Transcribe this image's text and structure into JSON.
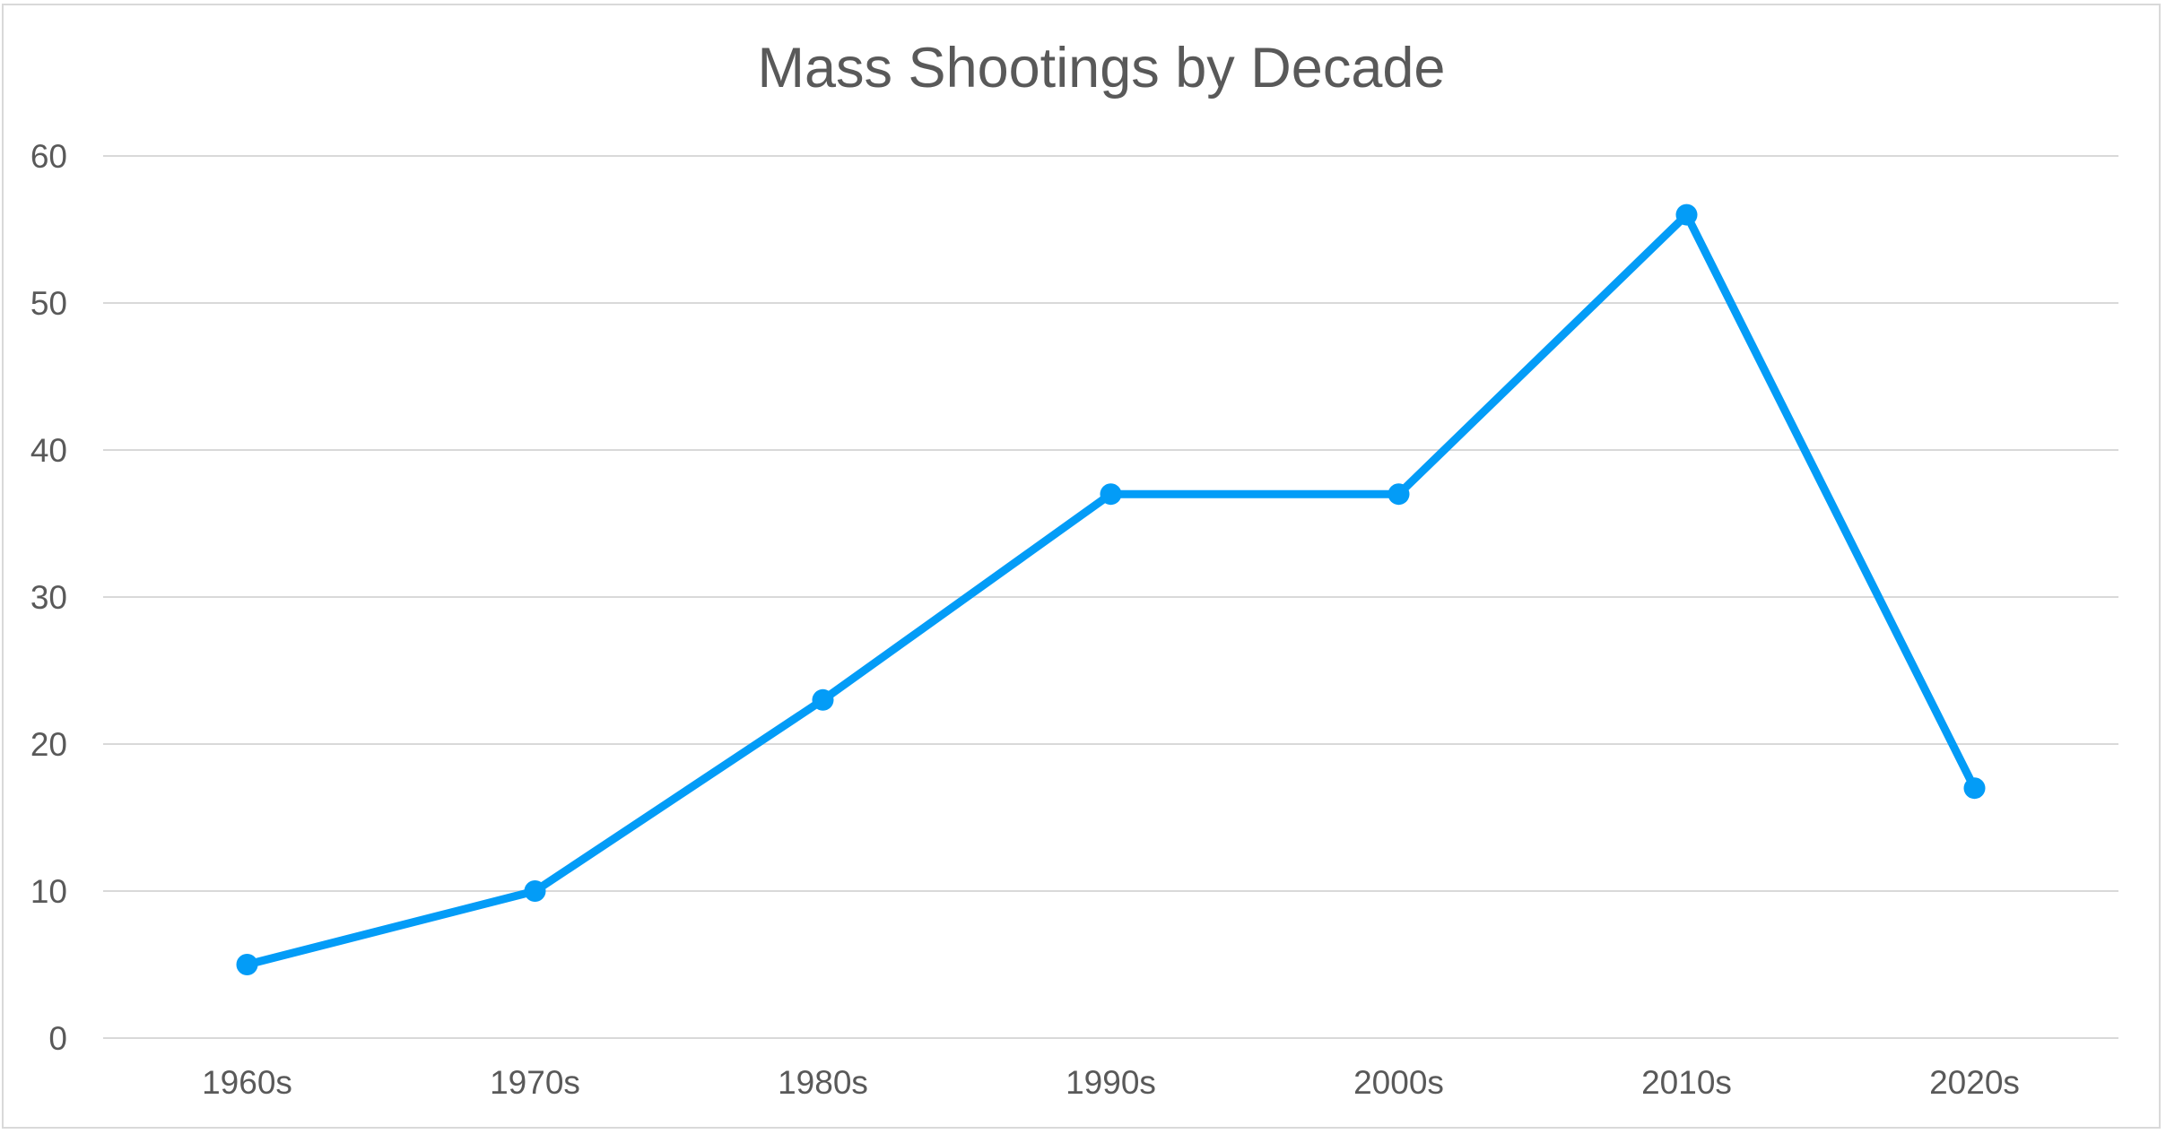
{
  "chart_data": {
    "type": "line",
    "title": "Mass Shootings by Decade",
    "xlabel": "",
    "ylabel": "",
    "categories": [
      "1960s",
      "1970s",
      "1980s",
      "1990s",
      "2000s",
      "2010s",
      "2020s"
    ],
    "series": [
      {
        "values": [
          5,
          10,
          23,
          37,
          37,
          56,
          17
        ]
      }
    ],
    "ylim": [
      0,
      60
    ],
    "yticks": [
      "0",
      "10",
      "20",
      "30",
      "40",
      "50",
      "60"
    ],
    "grid": "horizontal",
    "legend": "none",
    "colors": {
      "series": "#039cf7",
      "grid": "#d9d9d9",
      "text": "#595959"
    }
  }
}
